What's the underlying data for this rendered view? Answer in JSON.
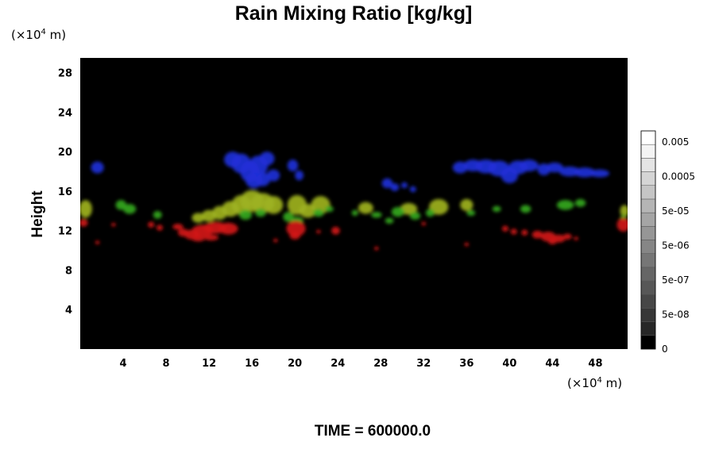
{
  "chart_data": {
    "type": "heatmap",
    "title": "Rain Mixing Ratio [kg/kg]",
    "ylabel": "Height",
    "y_unit_prefix": "(×10",
    "y_unit_exp": "4",
    "y_unit_suffix": " m)",
    "x_unit_prefix": "(×10",
    "x_unit_exp": "4",
    "x_unit_suffix": " m)",
    "xlim": [
      0,
      51
    ],
    "ylim": [
      0,
      29.5
    ],
    "xticks": [
      4,
      8,
      12,
      16,
      20,
      24,
      28,
      32,
      36,
      40,
      44,
      48
    ],
    "yticks": [
      4,
      8,
      12,
      16,
      20,
      24,
      28
    ],
    "background_color": "#000000",
    "colorbar": {
      "labels": [
        "0",
        "5e-08",
        "5e-07",
        "5e-06",
        "5e-05",
        "0.0005",
        "0.005"
      ],
      "n_levels": 16,
      "colors": [
        "#000000",
        "#ffffff"
      ]
    },
    "features": [
      {
        "color": "#1f2fd8",
        "points": [
          [
            1.6,
            18.4,
            0.6,
            0.6
          ],
          [
            14.2,
            19.2,
            0.8,
            0.8
          ],
          [
            15,
            18.8,
            0.9,
            1.0
          ],
          [
            15.8,
            18,
            0.9,
            1.1
          ],
          [
            16.6,
            18.6,
            0.9,
            1.0
          ],
          [
            17.4,
            19.3,
            0.7,
            0.7
          ],
          [
            16.2,
            17.1,
            0.8,
            0.8
          ],
          [
            17,
            17.2,
            0.7,
            0.7
          ],
          [
            18,
            17.6,
            0.6,
            0.6
          ],
          [
            19.8,
            18.6,
            0.5,
            0.6
          ],
          [
            20.4,
            17.6,
            0.4,
            0.5
          ],
          [
            28.6,
            16.8,
            0.5,
            0.5
          ],
          [
            29.3,
            16.4,
            0.4,
            0.4
          ],
          [
            30.2,
            16.6,
            0.3,
            0.3
          ],
          [
            31,
            16.2,
            0.3,
            0.3
          ],
          [
            35.4,
            18.4,
            0.7,
            0.6
          ],
          [
            36.6,
            18.6,
            0.9,
            0.6
          ],
          [
            37.8,
            18.5,
            1.0,
            0.7
          ],
          [
            39,
            18.3,
            1.0,
            0.8
          ],
          [
            40,
            17.6,
            0.8,
            0.8
          ],
          [
            40.8,
            18.4,
            0.9,
            0.7
          ],
          [
            41.8,
            18.6,
            0.9,
            0.6
          ],
          [
            43.2,
            18.2,
            0.6,
            0.6
          ],
          [
            44.2,
            18.4,
            0.8,
            0.5
          ],
          [
            45.6,
            18,
            1.0,
            0.5
          ],
          [
            47,
            17.9,
            1.0,
            0.5
          ],
          [
            48.4,
            17.8,
            0.9,
            0.4
          ]
        ]
      },
      {
        "color": "#9eb21f",
        "points": [
          [
            0.5,
            14.2,
            0.6,
            0.9
          ],
          [
            11,
            13.3,
            0.6,
            0.5
          ],
          [
            12,
            13.5,
            0.7,
            0.6
          ],
          [
            13,
            13.8,
            0.7,
            0.7
          ],
          [
            14,
            14.2,
            0.8,
            0.8
          ],
          [
            15,
            14.6,
            0.9,
            1.0
          ],
          [
            16,
            15,
            1.1,
            1.1
          ],
          [
            17,
            14.8,
            1.1,
            1.0
          ],
          [
            18,
            14.6,
            0.9,
            0.9
          ],
          [
            20.2,
            14.6,
            0.9,
            1.0
          ],
          [
            21.2,
            14,
            0.8,
            0.7
          ],
          [
            22.4,
            14.6,
            0.9,
            0.9
          ],
          [
            26.6,
            14.3,
            0.7,
            0.6
          ],
          [
            30.6,
            14.2,
            0.8,
            0.6
          ],
          [
            33.4,
            14.4,
            0.9,
            0.8
          ],
          [
            36,
            14.6,
            0.6,
            0.6
          ],
          [
            50.7,
            14,
            0.4,
            0.6
          ]
        ]
      },
      {
        "color": "#33a81f",
        "points": [
          [
            3.8,
            14.6,
            0.5,
            0.5
          ],
          [
            4.6,
            14.2,
            0.6,
            0.5
          ],
          [
            7.2,
            13.6,
            0.4,
            0.4
          ],
          [
            15.4,
            13.6,
            0.6,
            0.5
          ],
          [
            16.8,
            13.8,
            0.5,
            0.4
          ],
          [
            19.4,
            13.4,
            0.5,
            0.5
          ],
          [
            20.2,
            13,
            0.6,
            0.4
          ],
          [
            22.2,
            13.8,
            0.5,
            0.4
          ],
          [
            23.2,
            14.2,
            0.4,
            0.3
          ],
          [
            25.6,
            13.8,
            0.3,
            0.3
          ],
          [
            27.6,
            13.6,
            0.5,
            0.3
          ],
          [
            29.6,
            13.9,
            0.6,
            0.5
          ],
          [
            31.2,
            13.5,
            0.5,
            0.4
          ],
          [
            32.6,
            13.8,
            0.4,
            0.4
          ],
          [
            36.4,
            13.8,
            0.4,
            0.3
          ],
          [
            38.8,
            14.2,
            0.4,
            0.3
          ],
          [
            41.5,
            14.2,
            0.5,
            0.4
          ],
          [
            45.2,
            14.6,
            0.8,
            0.5
          ],
          [
            46.6,
            14.8,
            0.5,
            0.4
          ],
          [
            50.6,
            13.2,
            0.3,
            0.4
          ],
          [
            28.8,
            13,
            0.4,
            0.3
          ]
        ]
      },
      {
        "color": "#d21414",
        "points": [
          [
            0.3,
            12.8,
            0.4,
            0.4
          ],
          [
            1.6,
            10.8,
            0.2,
            0.2
          ],
          [
            3.1,
            12.6,
            0.2,
            0.2
          ],
          [
            6.6,
            12.6,
            0.3,
            0.3
          ],
          [
            7.4,
            12.3,
            0.3,
            0.3
          ],
          [
            9.1,
            12.4,
            0.5,
            0.3
          ],
          [
            9.6,
            11.8,
            0.5,
            0.4
          ],
          [
            10.4,
            11.6,
            0.7,
            0.5
          ],
          [
            11.4,
            12,
            1.0,
            0.6
          ],
          [
            12.6,
            12.3,
            1.1,
            0.6
          ],
          [
            13.8,
            12.2,
            0.9,
            0.6
          ],
          [
            11,
            11.2,
            0.6,
            0.3
          ],
          [
            12.2,
            11.3,
            0.7,
            0.3
          ],
          [
            18.2,
            11,
            0.2,
            0.2
          ],
          [
            20.1,
            12.2,
            0.9,
            0.8
          ],
          [
            20,
            11.5,
            0.5,
            0.4
          ],
          [
            22.2,
            11.9,
            0.2,
            0.2
          ],
          [
            23.8,
            12,
            0.4,
            0.4
          ],
          [
            27.6,
            10.2,
            0.2,
            0.2
          ],
          [
            32,
            12.7,
            0.2,
            0.2
          ],
          [
            36,
            10.6,
            0.2,
            0.2
          ],
          [
            39.6,
            12.2,
            0.3,
            0.3
          ],
          [
            40.4,
            11.9,
            0.3,
            0.3
          ],
          [
            41.4,
            11.8,
            0.3,
            0.3
          ],
          [
            42.6,
            11.6,
            0.5,
            0.4
          ],
          [
            43.6,
            11.4,
            0.7,
            0.5
          ],
          [
            44.6,
            11.2,
            0.6,
            0.4
          ],
          [
            45.4,
            11.4,
            0.4,
            0.3
          ],
          [
            44,
            10.9,
            0.4,
            0.3
          ],
          [
            46.2,
            11.2,
            0.2,
            0.2
          ],
          [
            50.6,
            12.6,
            0.6,
            0.7
          ]
        ]
      }
    ]
  },
  "footer": {
    "time_label": "TIME = 600000.0"
  }
}
